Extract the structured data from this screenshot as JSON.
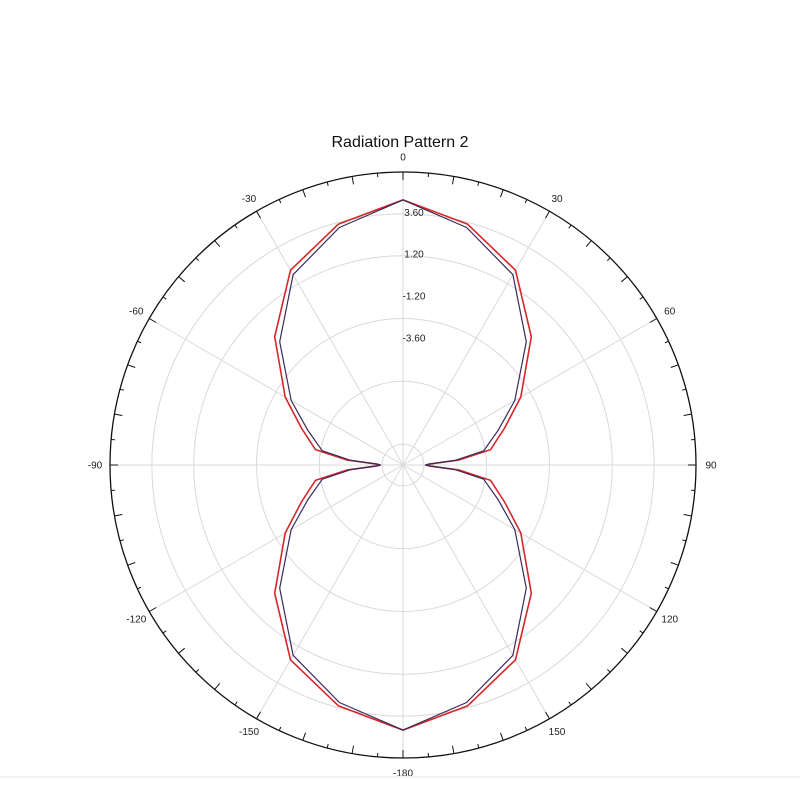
{
  "chart_data": {
    "type": "polar-line",
    "title": "Radiation Pattern 2",
    "angle_labels": [
      {
        "angle": 0,
        "text": "0"
      },
      {
        "angle": 30,
        "text": "30"
      },
      {
        "angle": 60,
        "text": "60"
      },
      {
        "angle": 90,
        "text": "90"
      },
      {
        "angle": 120,
        "text": "120"
      },
      {
        "angle": 150,
        "text": "150"
      },
      {
        "angle": 180,
        "text": "-180"
      },
      {
        "angle": -150,
        "text": "-150"
      },
      {
        "angle": -120,
        "text": "-120"
      },
      {
        "angle": -90,
        "text": "-90"
      },
      {
        "angle": -60,
        "text": "-60"
      },
      {
        "angle": -30,
        "text": "-30"
      }
    ],
    "radial_ticks": [
      {
        "value": 3.6,
        "text": "3.60"
      },
      {
        "value": 1.2,
        "text": "1.20"
      },
      {
        "value": -1.2,
        "text": "-1.20"
      },
      {
        "value": -3.6,
        "text": "-3.60"
      }
    ],
    "radial_range": [
      -10.8,
      6.0
    ],
    "grid": true,
    "series": [
      {
        "color": "#d62728",
        "points": [
          {
            "angle": 0,
            "value": 4.4
          },
          {
            "angle": 15,
            "value": 3.5
          },
          {
            "angle": 30,
            "value": 2.1
          },
          {
            "angle": 45,
            "value": -0.4
          },
          {
            "angle": 60,
            "value": -3.0
          },
          {
            "angle": 70,
            "value": -4.6
          },
          {
            "angle": 80,
            "value": -5.7
          },
          {
            "angle": 85,
            "value": -7.6
          },
          {
            "angle": 88,
            "value": -9.3
          },
          {
            "angle": 90,
            "value": -9.5
          },
          {
            "angle": 92,
            "value": -9.3
          },
          {
            "angle": 95,
            "value": -7.6
          },
          {
            "angle": 100,
            "value": -5.7
          },
          {
            "angle": 110,
            "value": -4.6
          },
          {
            "angle": 120,
            "value": -3.0
          },
          {
            "angle": 135,
            "value": -0.4
          },
          {
            "angle": 150,
            "value": 2.1
          },
          {
            "angle": 165,
            "value": 3.5
          },
          {
            "angle": 180,
            "value": 4.4
          },
          {
            "angle": 195,
            "value": 3.5
          },
          {
            "angle": 210,
            "value": 2.1
          },
          {
            "angle": 225,
            "value": -0.4
          },
          {
            "angle": 240,
            "value": -3.0
          },
          {
            "angle": 250,
            "value": -4.6
          },
          {
            "angle": 260,
            "value": -5.7
          },
          {
            "angle": 265,
            "value": -7.6
          },
          {
            "angle": 268,
            "value": -9.3
          },
          {
            "angle": 270,
            "value": -9.5
          },
          {
            "angle": 272,
            "value": -9.3
          },
          {
            "angle": 275,
            "value": -7.6
          },
          {
            "angle": 280,
            "value": -5.7
          },
          {
            "angle": 290,
            "value": -4.6
          },
          {
            "angle": 300,
            "value": -3.0
          },
          {
            "angle": 315,
            "value": -0.4
          },
          {
            "angle": 330,
            "value": 2.1
          },
          {
            "angle": 345,
            "value": 3.5
          },
          {
            "angle": 360,
            "value": 4.4
          }
        ]
      },
      {
        "color": "#3a2a5a",
        "points": [
          {
            "angle": 0,
            "value": 4.4
          },
          {
            "angle": 15,
            "value": 3.3
          },
          {
            "angle": 30,
            "value": 1.8
          },
          {
            "angle": 45,
            "value": -0.8
          },
          {
            "angle": 60,
            "value": -3.4
          },
          {
            "angle": 70,
            "value": -5.0
          },
          {
            "angle": 80,
            "value": -6.1
          },
          {
            "angle": 85,
            "value": -7.8
          },
          {
            "angle": 88,
            "value": -9.3
          },
          {
            "angle": 90,
            "value": -9.5
          },
          {
            "angle": 92,
            "value": -9.3
          },
          {
            "angle": 95,
            "value": -7.8
          },
          {
            "angle": 100,
            "value": -6.1
          },
          {
            "angle": 110,
            "value": -5.0
          },
          {
            "angle": 120,
            "value": -3.4
          },
          {
            "angle": 135,
            "value": -0.8
          },
          {
            "angle": 150,
            "value": 1.8
          },
          {
            "angle": 165,
            "value": 3.3
          },
          {
            "angle": 180,
            "value": 4.4
          },
          {
            "angle": 195,
            "value": 3.3
          },
          {
            "angle": 210,
            "value": 1.8
          },
          {
            "angle": 225,
            "value": -0.8
          },
          {
            "angle": 240,
            "value": -3.4
          },
          {
            "angle": 250,
            "value": -5.0
          },
          {
            "angle": 260,
            "value": -6.1
          },
          {
            "angle": 265,
            "value": -7.8
          },
          {
            "angle": 268,
            "value": -9.3
          },
          {
            "angle": 270,
            "value": -9.5
          },
          {
            "angle": 272,
            "value": -9.3
          },
          {
            "angle": 275,
            "value": -7.8
          },
          {
            "angle": 280,
            "value": -6.1
          },
          {
            "angle": 290,
            "value": -5.0
          },
          {
            "angle": 300,
            "value": -3.4
          },
          {
            "angle": 315,
            "value": -0.8
          },
          {
            "angle": 330,
            "value": 1.8
          },
          {
            "angle": 345,
            "value": 3.3
          },
          {
            "angle": 360,
            "value": 4.4
          }
        ]
      }
    ]
  }
}
